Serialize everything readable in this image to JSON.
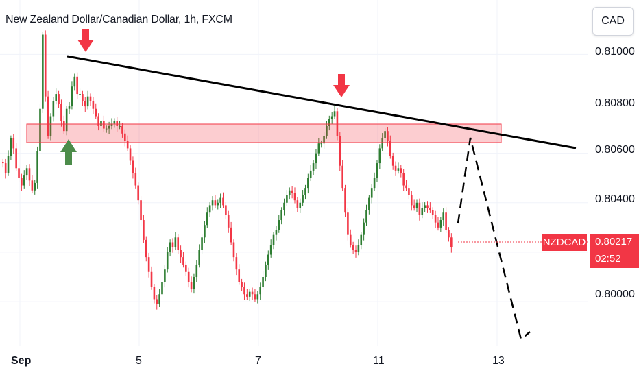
{
  "header": {
    "symbol_title": "New Zealand Dollar/Canadian Dollar, 1h, FXCM"
  },
  "currency_button": "CAD",
  "price_axis": {
    "ticks": [
      "0.81000",
      "0.80800",
      "0.80600",
      "0.80400",
      "0.80000"
    ]
  },
  "time_axis": {
    "ticks": [
      "Sep",
      "5",
      "7",
      "11",
      "13"
    ]
  },
  "last_price": {
    "symbol": "NZDCAD",
    "price": "0.80217",
    "countdown": "02:52"
  },
  "colors": {
    "up": "#2e7d32",
    "down": "#f23645",
    "zone": "#f23645",
    "trendline": "#000000"
  },
  "chart_data": {
    "type": "candlestick",
    "ylim": [
      0.7982,
      0.8122
    ],
    "grid": true,
    "candles_close": [
      0.8056,
      0.8052,
      0.8059,
      0.8066,
      0.8062,
      0.8054,
      0.805,
      0.8047,
      0.8051,
      0.8054,
      0.8049,
      0.8045,
      0.8048,
      0.8061,
      0.8078,
      0.8108,
      0.8083,
      0.8067,
      0.8075,
      0.8081,
      0.8084,
      0.808,
      0.8073,
      0.8069,
      0.8078,
      0.8079,
      0.8087,
      0.8091,
      0.8084,
      0.8084,
      0.8081,
      0.8079,
      0.8083,
      0.8081,
      0.8078,
      0.8075,
      0.8071,
      0.8073,
      0.807,
      0.807,
      0.8071,
      0.8072,
      0.8073,
      0.8071,
      0.8071,
      0.8068,
      0.8065,
      0.8062,
      0.8057,
      0.8052,
      0.8047,
      0.8041,
      0.8033,
      0.8025,
      0.8018,
      0.8012,
      0.8006,
      0.8001,
      0.7999,
      0.8003,
      0.8008,
      0.8013,
      0.802,
      0.8024,
      0.8022,
      0.8026,
      0.8021,
      0.8018,
      0.8015,
      0.8012,
      0.8008,
      0.8005,
      0.801,
      0.8015,
      0.8021,
      0.8026,
      0.8031,
      0.8036,
      0.8039,
      0.8041,
      0.8039,
      0.804,
      0.8042,
      0.8039,
      0.8035,
      0.803,
      0.8024,
      0.8018,
      0.8013,
      0.8008,
      0.8006,
      0.8003,
      0.8002,
      0.8004,
      0.8003,
      0.8001,
      0.8003,
      0.8006,
      0.801,
      0.8015,
      0.8019,
      0.8023,
      0.8027,
      0.8029,
      0.8033,
      0.8037,
      0.804,
      0.8043,
      0.8045,
      0.8044,
      0.8041,
      0.8038,
      0.804,
      0.8043,
      0.8046,
      0.805,
      0.8053,
      0.8056,
      0.806,
      0.8064,
      0.8064,
      0.8067,
      0.8071,
      0.8074,
      0.8075,
      0.8077,
      0.8067,
      0.8055,
      0.8046,
      0.8036,
      0.8027,
      0.8023,
      0.8021,
      0.802,
      0.8023,
      0.8027,
      0.8032,
      0.8037,
      0.8042,
      0.8046,
      0.805,
      0.8056,
      0.8062,
      0.8066,
      0.8069,
      0.8065,
      0.8059,
      0.8055,
      0.8053,
      0.8054,
      0.8052,
      0.8047,
      0.8046,
      0.8043,
      0.8039,
      0.8038,
      0.804,
      0.8035,
      0.8038,
      0.8039,
      0.8038,
      0.8037,
      0.8035,
      0.8032,
      0.803,
      0.8033,
      0.8036,
      0.8029,
      0.8026,
      0.8022
    ]
  }
}
